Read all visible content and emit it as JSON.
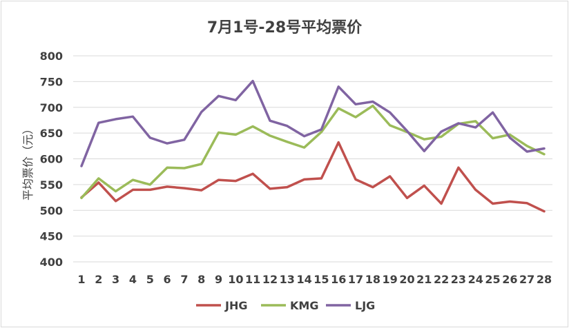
{
  "chart_data": {
    "type": "line",
    "title": "7月1号-28号平均票价",
    "ylabel": "平均票价（元）",
    "xlabel": "",
    "ylim": [
      400,
      800
    ],
    "yticks": [
      400,
      450,
      500,
      550,
      600,
      650,
      700,
      750,
      800
    ],
    "grid": "horizontal",
    "legend_position": "bottom",
    "x": [
      "1",
      "2",
      "3",
      "4",
      "5",
      "6",
      "7",
      "8",
      "9",
      "10",
      "11",
      "12",
      "13",
      "14",
      "15",
      "16",
      "17",
      "18",
      "19",
      "20",
      "21",
      "22",
      "23",
      "24",
      "25",
      "26",
      "27",
      "28"
    ],
    "series": [
      {
        "name": "JHG",
        "color": "#c0504d",
        "values": [
          525,
          554,
          518,
          540,
          540,
          546,
          543,
          539,
          559,
          557,
          571,
          542,
          545,
          560,
          562,
          632,
          560,
          545,
          566,
          524,
          548,
          513,
          583,
          540,
          513,
          517,
          514,
          498
        ]
      },
      {
        "name": "KMG",
        "color": "#9bbb59",
        "values": [
          524,
          562,
          537,
          559,
          550,
          583,
          582,
          590,
          651,
          647,
          663,
          645,
          633,
          622,
          652,
          698,
          681,
          703,
          665,
          652,
          638,
          643,
          668,
          673,
          640,
          647,
          625,
          609
        ]
      },
      {
        "name": "LJG",
        "color": "#8064a2",
        "values": [
          586,
          670,
          677,
          682,
          641,
          630,
          637,
          691,
          722,
          714,
          751,
          674,
          664,
          644,
          657,
          740,
          706,
          711,
          690,
          654,
          615,
          653,
          669,
          661,
          690,
          641,
          614,
          620
        ]
      }
    ]
  }
}
